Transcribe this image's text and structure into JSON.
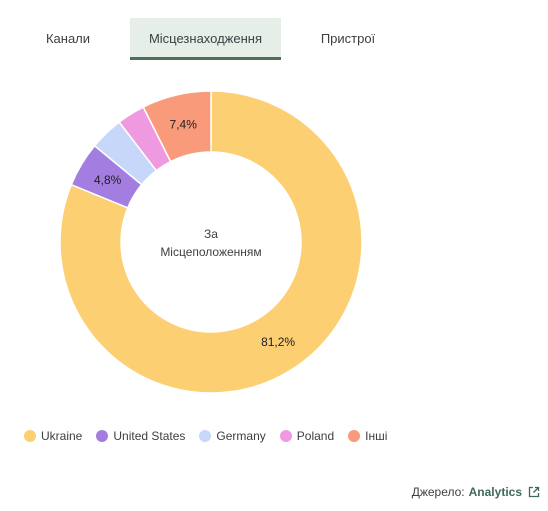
{
  "tabs": [
    {
      "label": "Канали",
      "active": false
    },
    {
      "label": "Місцезнаходження",
      "active": true
    },
    {
      "label": "Пристрої",
      "active": false
    }
  ],
  "chart_data": {
    "type": "pie",
    "center_text": [
      "За",
      "Місцеположенням"
    ],
    "categories": [
      "Ukraine",
      "United States",
      "Germany",
      "Poland",
      "Інші"
    ],
    "values": [
      81.2,
      4.8,
      3.6,
      3.0,
      7.4
    ],
    "slice_labels": [
      "81,2%",
      "4,8%",
      "",
      "",
      "7,4%"
    ],
    "colors": [
      "#fdcf73",
      "#a47de0",
      "#c7d7fa",
      "#ef9ae0",
      "#f99a7a"
    ],
    "legend_position": "bottom-left"
  },
  "legend": [
    {
      "label": "Ukraine",
      "color": "#fdcf73"
    },
    {
      "label": "United States",
      "color": "#a47de0"
    },
    {
      "label": "Germany",
      "color": "#c7d7fa"
    },
    {
      "label": "Poland",
      "color": "#ef9ae0"
    },
    {
      "label": "Інші",
      "color": "#f99a7a"
    }
  ],
  "source": {
    "prefix": "Джерело:",
    "link_label": "Analytics",
    "icon": "external-link-icon"
  }
}
